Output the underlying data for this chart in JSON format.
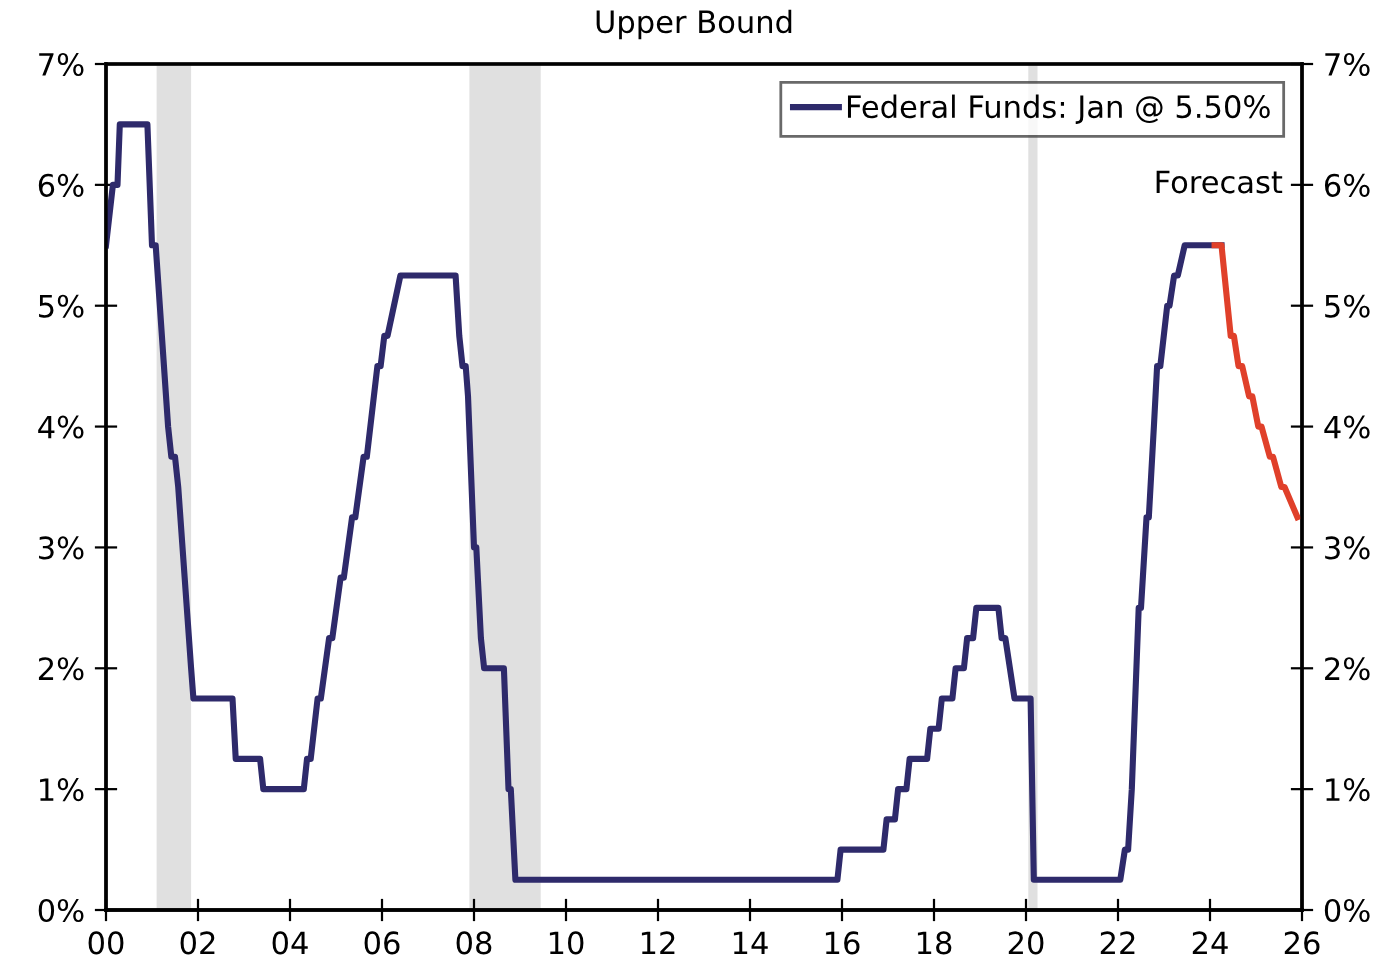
{
  "chart_data": {
    "type": "line",
    "subtitle": "Upper Bound",
    "xlim": [
      2000,
      2026
    ],
    "xticks": [
      {
        "value": 2000,
        "label": "00"
      },
      {
        "value": 2002,
        "label": "02"
      },
      {
        "value": 2004,
        "label": "04"
      },
      {
        "value": 2006,
        "label": "06"
      },
      {
        "value": 2008,
        "label": "08"
      },
      {
        "value": 2010,
        "label": "10"
      },
      {
        "value": 2012,
        "label": "12"
      },
      {
        "value": 2014,
        "label": "14"
      },
      {
        "value": 2016,
        "label": "16"
      },
      {
        "value": 2018,
        "label": "18"
      },
      {
        "value": 2020,
        "label": "20"
      },
      {
        "value": 2022,
        "label": "22"
      },
      {
        "value": 2024,
        "label": "24"
      },
      {
        "value": 2026,
        "label": "26"
      }
    ],
    "ylim": [
      0,
      7
    ],
    "yticks": [
      {
        "value": 0,
        "label": "0%"
      },
      {
        "value": 1,
        "label": "1%"
      },
      {
        "value": 2,
        "label": "2%"
      },
      {
        "value": 3,
        "label": "3%"
      },
      {
        "value": 4,
        "label": "4%"
      },
      {
        "value": 5,
        "label": "5%"
      },
      {
        "value": 6,
        "label": "6%"
      },
      {
        "value": 7,
        "label": "7%"
      }
    ],
    "y2lim": [
      0,
      7
    ],
    "y2ticks": [
      {
        "value": 0,
        "label": "0%"
      },
      {
        "value": 1,
        "label": "1%"
      },
      {
        "value": 2,
        "label": "2%"
      },
      {
        "value": 3,
        "label": "3%"
      },
      {
        "value": 4,
        "label": "4%"
      },
      {
        "value": 5,
        "label": "5%"
      },
      {
        "value": 6,
        "label": "6%"
      },
      {
        "value": 7,
        "label": "7%"
      }
    ],
    "legend": "top right",
    "grid": false,
    "line_style": "solid",
    "marker": "none",
    "bands": [
      {
        "axis": "x",
        "from": 2001.1,
        "to": 2001.85,
        "color": "#e0e0e0"
      },
      {
        "axis": "x",
        "from": 2007.9,
        "to": 2009.45,
        "color": "#e0e0e0"
      },
      {
        "axis": "x",
        "from": 2020.05,
        "to": 2020.25,
        "color": "#e0e0e0"
      }
    ],
    "annotations": [
      "Forecast"
    ],
    "series": [
      {
        "name": "Federal Funds: Jan @ 5.50%",
        "color": "#2e2a6b",
        "x": [
          2000.0,
          2000.15,
          2000.25,
          2000.3,
          2000.9,
          2001.0,
          2001.08,
          2001.35,
          2001.42,
          2001.5,
          2001.57,
          2001.85,
          2001.9,
          2002.75,
          2002.82,
          2003.35,
          2003.42,
          2004.3,
          2004.37,
          2004.45,
          2004.6,
          2004.67,
          2004.85,
          2004.92,
          2005.1,
          2005.17,
          2005.35,
          2005.42,
          2005.6,
          2005.67,
          2005.9,
          2005.97,
          2006.05,
          2006.12,
          2006.4,
          2007.6,
          2007.68,
          2007.75,
          2007.82,
          2007.87,
          2008.0,
          2008.05,
          2008.15,
          2008.22,
          2008.65,
          2008.75,
          2008.8,
          2008.9,
          2015.9,
          2015.97,
          2016.9,
          2016.97,
          2017.15,
          2017.22,
          2017.4,
          2017.47,
          2017.85,
          2017.92,
          2018.1,
          2018.17,
          2018.4,
          2018.47,
          2018.65,
          2018.72,
          2018.85,
          2018.92,
          2019.4,
          2019.47,
          2019.55,
          2019.75,
          2020.1,
          2020.17,
          2022.05,
          2022.15,
          2022.22,
          2022.3,
          2022.45,
          2022.5,
          2022.62,
          2022.67,
          2022.78,
          2022.85,
          2022.92,
          2023.07,
          2023.12,
          2023.22,
          2023.3,
          2023.45,
          2024.25
        ],
        "values": [
          5.5,
          6.0,
          6.0,
          6.5,
          6.5,
          5.5,
          5.5,
          4.0,
          3.75,
          3.75,
          3.5,
          2.0,
          1.75,
          1.75,
          1.25,
          1.25,
          1.0,
          1.0,
          1.25,
          1.25,
          1.75,
          1.75,
          2.25,
          2.25,
          2.75,
          2.75,
          3.25,
          3.25,
          3.75,
          3.75,
          4.5,
          4.5,
          4.75,
          4.75,
          5.25,
          5.25,
          4.75,
          4.5,
          4.5,
          4.25,
          3.0,
          3.0,
          2.25,
          2.0,
          2.0,
          1.0,
          1.0,
          0.25,
          0.25,
          0.5,
          0.5,
          0.75,
          0.75,
          1.0,
          1.0,
          1.25,
          1.25,
          1.5,
          1.5,
          1.75,
          1.75,
          2.0,
          2.0,
          2.25,
          2.25,
          2.5,
          2.5,
          2.25,
          2.25,
          1.75,
          1.75,
          0.25,
          0.25,
          0.5,
          0.5,
          1.0,
          2.5,
          2.5,
          3.25,
          3.25,
          4.0,
          4.5,
          4.5,
          5.0,
          5.0,
          5.25,
          5.25,
          5.5,
          5.5
        ]
      },
      {
        "color": "#e0402a",
        "x": [
          2024.1,
          2024.25,
          2024.45,
          2024.52,
          2024.62,
          2024.7,
          2024.85,
          2024.92,
          2025.05,
          2025.12,
          2025.3,
          2025.37,
          2025.55,
          2025.62,
          2025.9
        ],
        "values": [
          5.5,
          5.5,
          4.75,
          4.75,
          4.5,
          4.5,
          4.25,
          4.25,
          4.0,
          4.0,
          3.75,
          3.75,
          3.5,
          3.5,
          3.25
        ]
      }
    ]
  }
}
